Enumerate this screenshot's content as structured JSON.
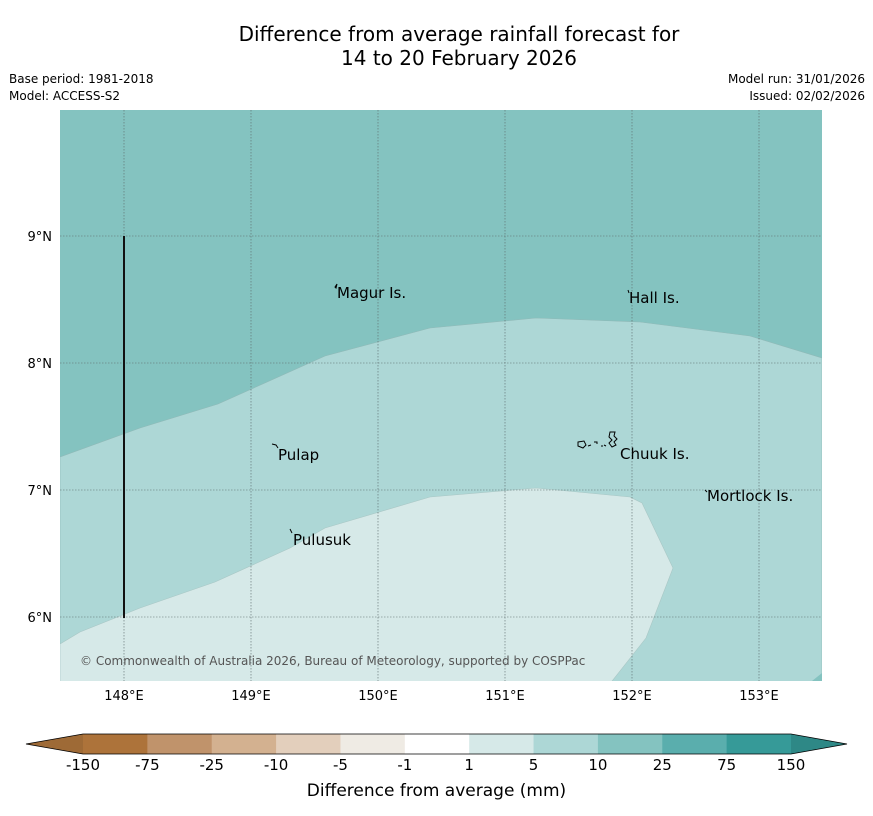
{
  "title": {
    "line1": "Difference from average rainfall forecast for",
    "line2": "14 to 20 February 2026"
  },
  "meta": {
    "base_period": "Base period: 1981-2018",
    "model": "Model: ACCESS-S2",
    "model_run": "Model run: 31/01/2026",
    "issued": "Issued: 02/02/2026"
  },
  "map": {
    "lon_range": [
      147.5,
      153.5
    ],
    "lat_range": [
      5.5,
      10.0
    ],
    "lon_ticks": [
      "148°E",
      "149°E",
      "150°E",
      "151°E",
      "152°E",
      "153°E"
    ],
    "lat_ticks": [
      "9°N",
      "8°N",
      "7°N",
      "6°N"
    ],
    "places": [
      {
        "name": "Magur Is.",
        "lon": 149.7,
        "lat": 8.55
      },
      {
        "name": "Hall Is.",
        "lon": 152.0,
        "lat": 8.5
      },
      {
        "name": "Pulap",
        "lon": 149.2,
        "lat": 7.28
      },
      {
        "name": "Chuuk Is.",
        "lon": 151.9,
        "lat": 7.3
      },
      {
        "name": "Mortlock Is.",
        "lon": 152.6,
        "lat": 6.95
      },
      {
        "name": "Pulusuk",
        "lon": 149.32,
        "lat": 6.62
      }
    ],
    "copyright": "© Commonwealth of Australia 2026, Bureau of Meteorology, supported by COSPPac",
    "colors": {
      "band_10_25": "#84c3c0",
      "band_5_10": "#add7d6",
      "band_1_5": "#d6e9e8",
      "grid": "#555555",
      "copyright_text": "#555555"
    }
  },
  "colorbar": {
    "title": "Difference from average (mm)",
    "tick_labels": [
      "-150",
      "-75",
      "-25",
      "-10",
      "-5",
      "-1",
      "1",
      "5",
      "10",
      "25",
      "75",
      "150"
    ],
    "colors": [
      "#ad733a",
      "#c0936b",
      "#d3b190",
      "#e3cfbc",
      "#efebe4",
      "#ffffff",
      "#d6e9e8",
      "#add7d6",
      "#84c3c0",
      "#5aaead",
      "#369a98"
    ],
    "extend_low_color": "#9e6a36",
    "extend_high_color": "#2e8886"
  }
}
